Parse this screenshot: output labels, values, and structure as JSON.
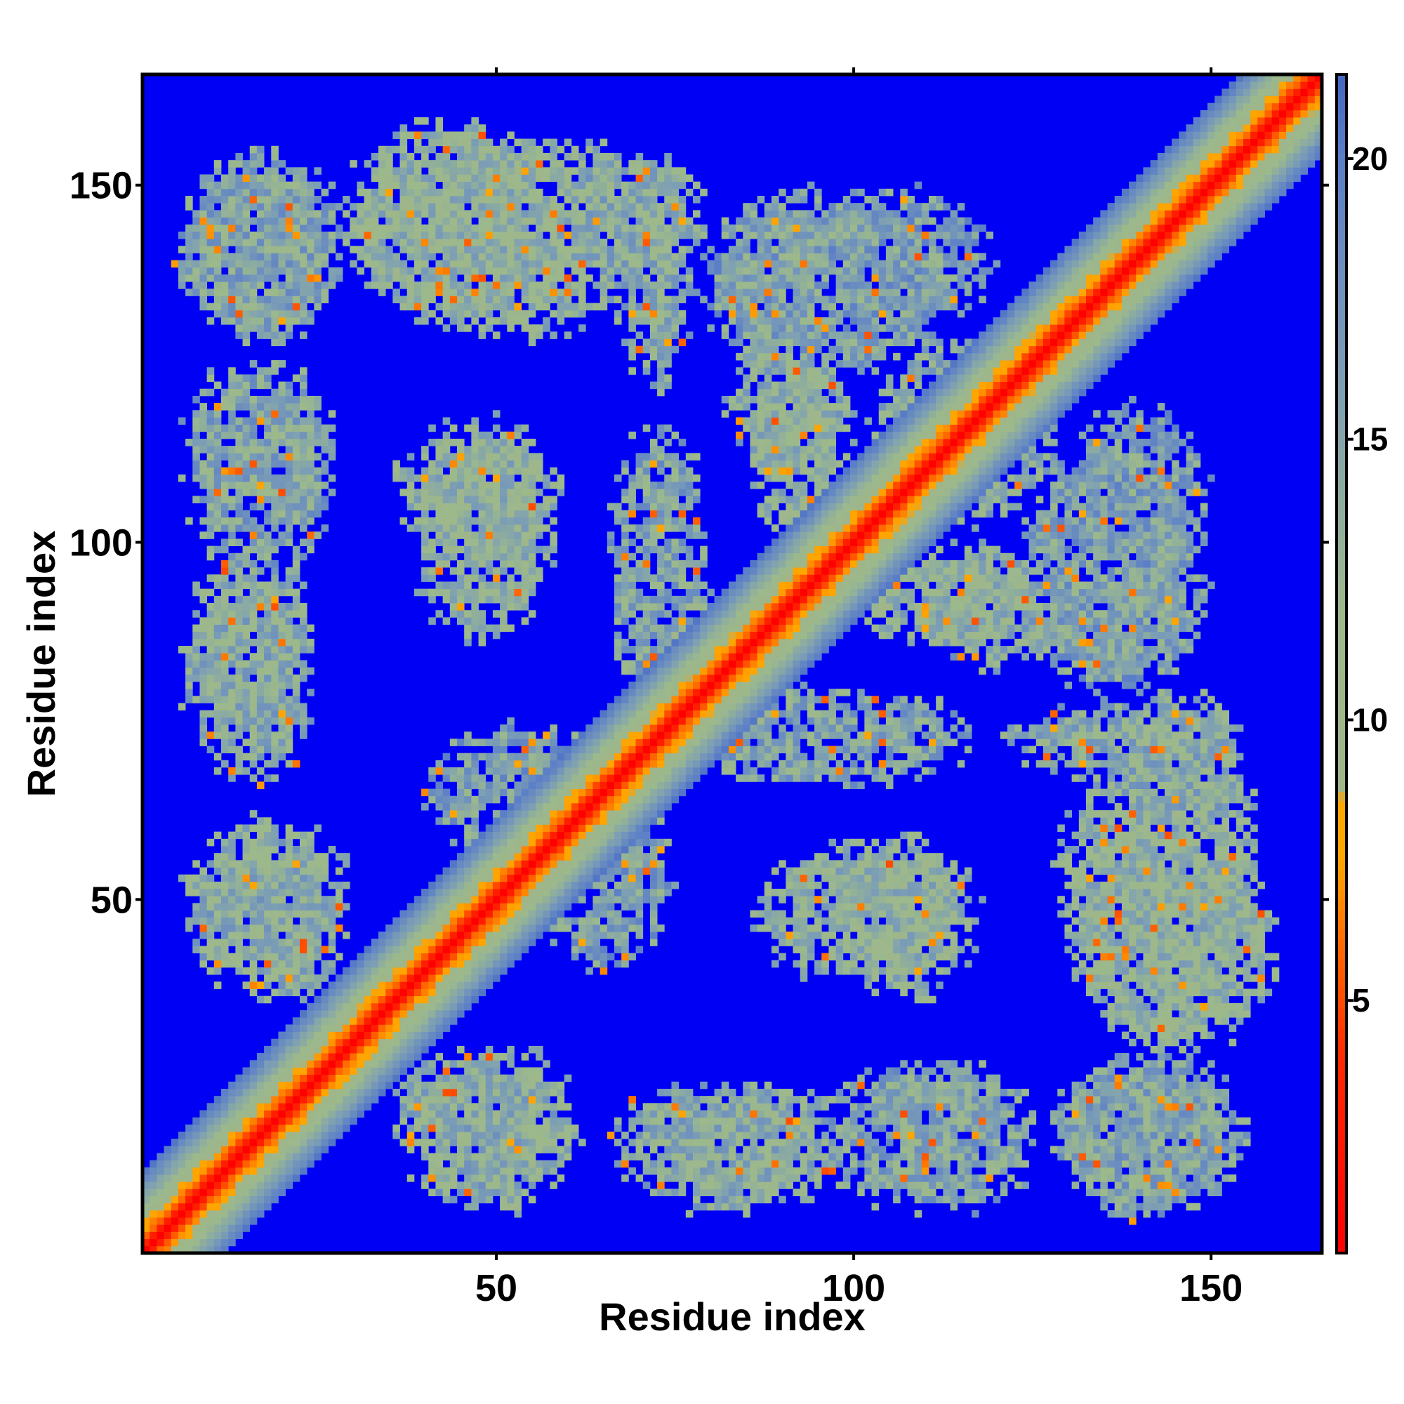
{
  "chart_data": {
    "type": "heatmap",
    "title": "",
    "xlabel": "Residue index",
    "ylabel": "Residue index",
    "xlim": [
      1,
      165
    ],
    "ylim": [
      1,
      165
    ],
    "x_ticks": [
      50,
      100,
      150
    ],
    "y_ticks": [
      50,
      100,
      150
    ],
    "colorbar": {
      "ticks": [
        5,
        10,
        15,
        20
      ],
      "range": [
        0.5,
        21.5
      ],
      "stops": [
        {
          "value": 0.5,
          "color": "#ff0000"
        },
        {
          "value": 4.0,
          "color": "#ff2a00"
        },
        {
          "value": 6.0,
          "color": "#ff6a00"
        },
        {
          "value": 7.5,
          "color": "#ffa500"
        },
        {
          "value": 8.6,
          "color": "#ffa500"
        },
        {
          "value": 8.7,
          "color": "#9fb58a"
        },
        {
          "value": 12.0,
          "color": "#9cb98c"
        },
        {
          "value": 16.0,
          "color": "#7d9fb4"
        },
        {
          "value": 20.0,
          "color": "#5b7ec8"
        },
        {
          "value": 21.5,
          "color": "#4467c0"
        }
      ],
      "background_color": "#0000f5"
    },
    "diagonal": {
      "width_residues": 11,
      "description_values": "distance grows with |i-j| from ~3.8 at diagonal to ~20 at band edge"
    },
    "contact_regions": [
      {
        "x": [
          5,
          30
        ],
        "y": [
          128,
          155
        ],
        "mean_value": 15
      },
      {
        "x": [
          30,
          75
        ],
        "y": [
          128,
          158
        ],
        "mean_value": 13
      },
      {
        "x": [
          67,
          78
        ],
        "y": [
          120,
          156
        ],
        "mean_value": 14
      },
      {
        "x": [
          78,
          115
        ],
        "y": [
          122,
          150
        ],
        "mean_value": 16
      },
      {
        "x": [
          82,
          100
        ],
        "y": [
          108,
          130
        ],
        "mean_value": 14
      },
      {
        "x": [
          102,
          130
        ],
        "y": [
          108,
          130
        ],
        "mean_value": 14
      },
      {
        "x": [
          6,
          28
        ],
        "y": [
          105,
          126
        ],
        "mean_value": 15
      },
      {
        "x": [
          35,
          60
        ],
        "y": [
          95,
          118
        ],
        "mean_value": 13
      },
      {
        "x": [
          65,
          80
        ],
        "y": [
          75,
          118
        ],
        "mean_value": 15
      },
      {
        "x": [
          130,
          150
        ],
        "y": [
          95,
          120
        ],
        "mean_value": 16
      },
      {
        "x": [
          6,
          25
        ],
        "y": [
          70,
          100
        ],
        "mean_value": 14
      },
      {
        "x": [
          70,
          95
        ],
        "y": [
          72,
          92
        ],
        "mean_value": 13
      },
      {
        "x": [
          100,
          125
        ],
        "y": [
          85,
          100
        ],
        "mean_value": 13
      },
      {
        "x": [
          125,
          150
        ],
        "y": [
          80,
          98
        ],
        "mean_value": 15
      },
      {
        "x": [
          40,
          70
        ],
        "y": [
          55,
          75
        ],
        "mean_value": 16
      },
      {
        "x": [
          135,
          155
        ],
        "y": [
          58,
          80
        ],
        "mean_value": 14
      },
      {
        "x": [
          6,
          30
        ],
        "y": [
          40,
          62
        ],
        "mean_value": 13
      },
      {
        "x": [
          85,
          115
        ],
        "y": [
          38,
          58
        ],
        "mean_value": 13
      },
      {
        "x": [
          130,
          160
        ],
        "y": [
          28,
          60
        ],
        "mean_value": 13
      },
      {
        "x": [
          35,
          58
        ],
        "y": [
          7,
          30
        ],
        "mean_value": 14
      },
      {
        "x": [
          65,
          95
        ],
        "y": [
          6,
          25
        ],
        "mean_value": 14
      },
      {
        "x": [
          95,
          122
        ],
        "y": [
          6,
          28
        ],
        "mean_value": 15
      },
      {
        "x": [
          128,
          155
        ],
        "y": [
          6,
          28
        ],
        "mean_value": 15
      }
    ]
  }
}
